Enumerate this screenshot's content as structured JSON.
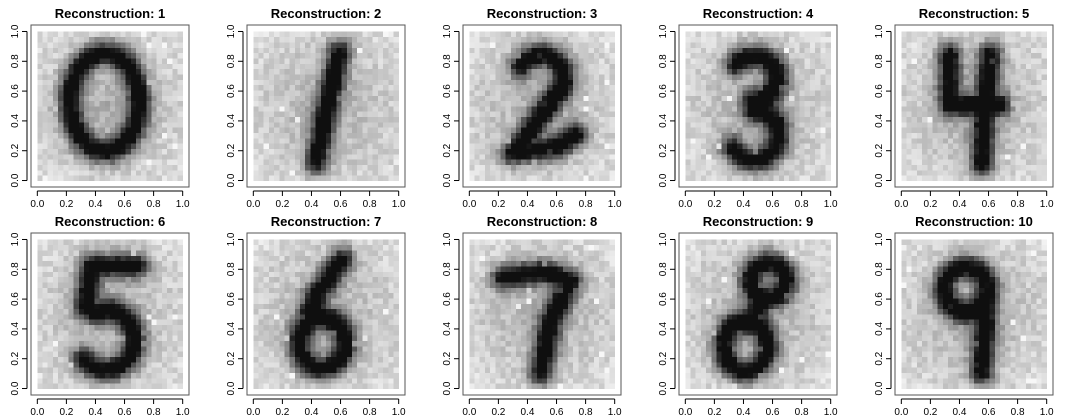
{
  "chart_data": [
    {
      "type": "heatmap",
      "title": "Reconstruction: 1",
      "xlim": [
        0,
        1
      ],
      "ylim": [
        0,
        1
      ],
      "x_ticks": [
        "0.0",
        "0.2",
        "0.4",
        "0.6",
        "0.8",
        "1.0"
      ],
      "y_ticks": [
        "0.0",
        "0.2",
        "0.4",
        "0.6",
        "0.8",
        "1.0"
      ],
      "digit": "0",
      "colormap": "grayscale (dark = high)"
    },
    {
      "type": "heatmap",
      "title": "Reconstruction: 2",
      "xlim": [
        0,
        1
      ],
      "ylim": [
        0,
        1
      ],
      "x_ticks": [
        "0.0",
        "0.2",
        "0.4",
        "0.6",
        "0.8",
        "1.0"
      ],
      "y_ticks": [
        "0.0",
        "0.2",
        "0.4",
        "0.6",
        "0.8",
        "1.0"
      ],
      "digit": "1",
      "colormap": "grayscale (dark = high)"
    },
    {
      "type": "heatmap",
      "title": "Reconstruction: 3",
      "xlim": [
        0,
        1
      ],
      "ylim": [
        0,
        1
      ],
      "x_ticks": [
        "0.0",
        "0.2",
        "0.4",
        "0.6",
        "0.8",
        "1.0"
      ],
      "y_ticks": [
        "0.0",
        "0.2",
        "0.4",
        "0.6",
        "0.8",
        "1.0"
      ],
      "digit": "2",
      "colormap": "grayscale (dark = high)"
    },
    {
      "type": "heatmap",
      "title": "Reconstruction: 4",
      "xlim": [
        0,
        1
      ],
      "ylim": [
        0,
        1
      ],
      "x_ticks": [
        "0.0",
        "0.2",
        "0.4",
        "0.6",
        "0.8",
        "1.0"
      ],
      "y_ticks": [
        "0.0",
        "0.2",
        "0.4",
        "0.6",
        "0.8",
        "1.0"
      ],
      "digit": "3",
      "colormap": "grayscale (dark = high)"
    },
    {
      "type": "heatmap",
      "title": "Reconstruction: 5",
      "xlim": [
        0,
        1
      ],
      "ylim": [
        0,
        1
      ],
      "x_ticks": [
        "0.0",
        "0.2",
        "0.4",
        "0.6",
        "0.8",
        "1.0"
      ],
      "y_ticks": [
        "0.0",
        "0.2",
        "0.4",
        "0.6",
        "0.8",
        "1.0"
      ],
      "digit": "4",
      "colormap": "grayscale (dark = high)"
    },
    {
      "type": "heatmap",
      "title": "Reconstruction: 6",
      "xlim": [
        0,
        1
      ],
      "ylim": [
        0,
        1
      ],
      "x_ticks": [
        "0.0",
        "0.2",
        "0.4",
        "0.6",
        "0.8",
        "1.0"
      ],
      "y_ticks": [
        "0.0",
        "0.2",
        "0.4",
        "0.6",
        "0.8",
        "1.0"
      ],
      "digit": "5",
      "colormap": "grayscale (dark = high)"
    },
    {
      "type": "heatmap",
      "title": "Reconstruction: 7",
      "xlim": [
        0,
        1
      ],
      "ylim": [
        0,
        1
      ],
      "x_ticks": [
        "0.0",
        "0.2",
        "0.4",
        "0.6",
        "0.8",
        "1.0"
      ],
      "y_ticks": [
        "0.0",
        "0.2",
        "0.4",
        "0.6",
        "0.8",
        "1.0"
      ],
      "digit": "6",
      "colormap": "grayscale (dark = high)"
    },
    {
      "type": "heatmap",
      "title": "Reconstruction: 8",
      "xlim": [
        0,
        1
      ],
      "ylim": [
        0,
        1
      ],
      "x_ticks": [
        "0.0",
        "0.2",
        "0.4",
        "0.6",
        "0.8",
        "1.0"
      ],
      "y_ticks": [
        "0.0",
        "0.2",
        "0.4",
        "0.6",
        "0.8",
        "1.0"
      ],
      "digit": "7",
      "colormap": "grayscale (dark = high)"
    },
    {
      "type": "heatmap",
      "title": "Reconstruction: 9",
      "xlim": [
        0,
        1
      ],
      "ylim": [
        0,
        1
      ],
      "x_ticks": [
        "0.0",
        "0.2",
        "0.4",
        "0.6",
        "0.8",
        "1.0"
      ],
      "y_ticks": [
        "0.0",
        "0.2",
        "0.4",
        "0.6",
        "0.8",
        "1.0"
      ],
      "digit": "8",
      "colormap": "grayscale (dark = high)"
    },
    {
      "type": "heatmap",
      "title": "Reconstruction: 10",
      "xlim": [
        0,
        1
      ],
      "ylim": [
        0,
        1
      ],
      "x_ticks": [
        "0.0",
        "0.2",
        "0.4",
        "0.6",
        "0.8",
        "1.0"
      ],
      "y_ticks": [
        "0.0",
        "0.2",
        "0.4",
        "0.6",
        "0.8",
        "1.0"
      ],
      "digit": "9",
      "colormap": "grayscale (dark = high)"
    }
  ],
  "colors": {
    "background": "#ffffff",
    "axis": "#555555",
    "ink": "#000000"
  }
}
